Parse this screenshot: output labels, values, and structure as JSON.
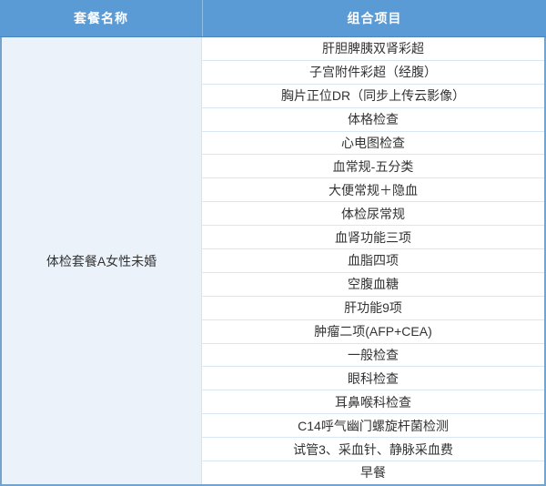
{
  "table": {
    "headers": [
      {
        "label": "套餐名称"
      },
      {
        "label": "组合项目"
      }
    ],
    "package_name": "体检套餐A女性未婚",
    "items": [
      "肝胆脾胰双肾彩超",
      "子宫附件彩超（经腹）",
      "胸片正位DR（同步上传云影像）",
      "体格检查",
      "心电图检查",
      "血常规-五分类",
      "大便常规＋隐血",
      "体检尿常规",
      "血肾功能三项",
      "血脂四项",
      "空腹血糖",
      "肝功能9项",
      "肿瘤二项(AFP+CEA)",
      "一般检查",
      "眼科检查",
      "耳鼻喉科检查",
      "C14呼气幽门螺旋杆菌检测",
      "试管3、采血针、静脉采血费",
      "早餐"
    ]
  },
  "colors": {
    "header_bg": "#5B9BD5",
    "header_text": "#FFFFFF",
    "header_divider": "#8FBCE3",
    "header_bottom_border": "#4A86BD",
    "package_cell_bg": "#EBF2FA",
    "row_bg": "#FFFFFF",
    "row_border": "#D9E6F3",
    "column_divider": "#D4E3F1",
    "outer_border": "#74A3CE",
    "body_text": "#333333"
  }
}
